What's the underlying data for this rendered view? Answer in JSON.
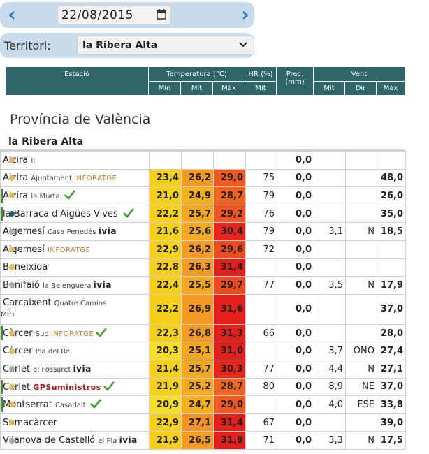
{
  "date_nav": {
    "date_value": "22/08/2015",
    "prev_icon": "chevron-left-icon",
    "next_icon": "chevron-right-icon"
  },
  "territory": {
    "label": "Territori:",
    "selected": "la Ribera Alta"
  },
  "header": {
    "station": "Estació",
    "temperature": "Temperatura (°C)",
    "humidity": "HR (%)",
    "precipitation": "Prec. (mm)",
    "wind": "Vent",
    "sub": {
      "temp_min": "Mín",
      "temp_mid": "Mit",
      "temp_max": "Màx",
      "hr_mid": "Mit",
      "wind_mid": "Mit",
      "wind_dir": "Dir",
      "wind_max": "Màx"
    }
  },
  "province": "Província de València",
  "territory_heading": "la Ribera Alta",
  "colors": {
    "dot_yellow": "#e6b85c",
    "dot_grey": "#aaaaaa",
    "dot_teal": "#1d6b63",
    "header_bg": "#2e6568"
  },
  "rows": [
    {
      "name": "Alzira",
      "sub": "II",
      "tag": "",
      "dot": "#e6b85c",
      "check": false,
      "min": "",
      "mit": "",
      "max": "",
      "hr": "",
      "prec": "0,0",
      "vmit": "",
      "vdir": "",
      "vmax": "",
      "cmin": "#ffffff",
      "cmit": "#ffffff",
      "cmax": "#ffffff"
    },
    {
      "name": "Alzira",
      "sub": "Ajuntament",
      "tag": "INFORATGE",
      "dot": "#e6b85c",
      "check": false,
      "min": "23,4",
      "mit": "26,2",
      "max": "29,0",
      "hr": "75",
      "prec": "0,0",
      "vmit": "",
      "vdir": "",
      "vmax": "48,0",
      "cmin": "#f6d11c",
      "cmit": "#f39b25",
      "cmax": "#ef5a21"
    },
    {
      "name": "Alzira",
      "sub": "la Murta",
      "tag": "",
      "dot": "#e6b85c",
      "check": true,
      "min": "21,0",
      "mit": "24,9",
      "max": "28,7",
      "hr": "79",
      "prec": "0,0",
      "vmit": "",
      "vdir": "",
      "vmax": "26,0",
      "cmin": "#f6d11c",
      "cmit": "#f5b020",
      "cmax": "#ef6522"
    },
    {
      "name": "la Barraca d'Aigües Vives",
      "sub": "",
      "tag": "",
      "dot": "#1d6b63",
      "check": true,
      "min": "22,2",
      "mit": "25,7",
      "max": "29,2",
      "hr": "76",
      "prec": "0,0",
      "vmit": "",
      "vdir": "",
      "vmax": "35,0",
      "cmin": "#f6d11c",
      "cmit": "#f4a823",
      "cmax": "#ee5520"
    },
    {
      "name": "Algemesí",
      "sub": "Casa Penedés",
      "tag": "ivia",
      "dot": "#aaaaaa",
      "check": false,
      "min": "21,6",
      "mit": "25,6",
      "max": "30,4",
      "hr": "79",
      "prec": "0,0",
      "vmit": "3,1",
      "vdir": "N",
      "vmax": "18,5",
      "cmin": "#f6d11c",
      "cmit": "#f4a823",
      "cmax": "#e8261e"
    },
    {
      "name": "Algemesí",
      "sub": "",
      "tag": "INFORATGE",
      "dot": "#e6b85c",
      "check": false,
      "min": "22,9",
      "mit": "26,2",
      "max": "29,6",
      "hr": "72",
      "prec": "0,0",
      "vmit": "",
      "vdir": "",
      "vmax": "",
      "cmin": "#f6d11c",
      "cmit": "#f39b25",
      "cmax": "#ec4a20"
    },
    {
      "name": "Beneixida",
      "sub": "",
      "tag": "",
      "dot": "#e6b85c",
      "check": false,
      "min": "22,8",
      "mit": "26,3",
      "max": "31,4",
      "hr": "",
      "prec": "0,0",
      "vmit": "",
      "vdir": "",
      "vmax": "",
      "cmin": "#f6d11c",
      "cmit": "#f39b25",
      "cmax": "#e4201c"
    },
    {
      "name": "Benifaió",
      "sub": "la Belenguera",
      "tag": "ivia",
      "dot": "#aaaaaa",
      "check": false,
      "min": "22,4",
      "mit": "25,5",
      "max": "29,7",
      "hr": "77",
      "prec": "0,0",
      "vmit": "3,5",
      "vdir": "N",
      "vmax": "17,9",
      "cmin": "#f6d11c",
      "cmit": "#f4a823",
      "cmax": "#ec4a20"
    },
    {
      "name": "Carcaixent",
      "sub": "Quatre Camins",
      "sub2": "AEMET",
      "tag": "",
      "dot": "#ffffff",
      "check": false,
      "min": "22,2",
      "mit": "26,9",
      "max": "31,6",
      "hr": "",
      "prec": "0,0",
      "vmit": "",
      "vdir": "",
      "vmax": "37,0",
      "cmin": "#f6d11c",
      "cmit": "#f39b25",
      "cmax": "#e4201c"
    },
    {
      "name": "Càrcer",
      "sub": "Sud",
      "tag": "INFORATGE",
      "dot": "#e6b85c",
      "check": true,
      "min": "22,3",
      "mit": "26,8",
      "max": "31,3",
      "hr": "66",
      "prec": "0,0",
      "vmit": "",
      "vdir": "",
      "vmax": "28,0",
      "cmin": "#f6d11c",
      "cmit": "#f39b25",
      "cmax": "#e4201c"
    },
    {
      "name": "Càrcer",
      "sub": "Pla del Rei",
      "tag": "",
      "dot": "#e6b85c",
      "check": false,
      "min": "20,3",
      "mit": "25,1",
      "max": "31,0",
      "hr": "",
      "prec": "0,0",
      "vmit": "3,7",
      "vdir": "ONO",
      "vmax": "27,4",
      "cmin": "#f8de2a",
      "cmit": "#f4a823",
      "cmax": "#e4201c"
    },
    {
      "name": "Carlet",
      "sub": "el Fossaret",
      "tag": "ivia",
      "dot": "#aaaaaa",
      "check": false,
      "min": "21,4",
      "mit": "25,7",
      "max": "30,3",
      "hr": "77",
      "prec": "0,0",
      "vmit": "4,4",
      "vdir": "N",
      "vmax": "27,1",
      "cmin": "#f6d11c",
      "cmit": "#f4a823",
      "cmax": "#e8261e"
    },
    {
      "name": "Carlet",
      "sub": "",
      "tag": "GPSuministros",
      "dot": "#e6b85c",
      "check": true,
      "min": "21,9",
      "mit": "25,2",
      "max": "28,7",
      "hr": "80",
      "prec": "0,0",
      "vmit": "8,9",
      "vdir": "NE",
      "vmax": "37,0",
      "cmin": "#f6d11c",
      "cmit": "#f4a823",
      "cmax": "#ef6522"
    },
    {
      "name": "Montserrat",
      "sub": "Casadalt",
      "tag": "",
      "dot": "#e6b85c",
      "check": true,
      "min": "20,9",
      "mit": "24,7",
      "max": "29,0",
      "hr": "",
      "prec": "0,0",
      "vmit": "4,0",
      "vdir": "ESE",
      "vmax": "33,8",
      "cmin": "#f8de2a",
      "cmit": "#f5b020",
      "cmax": "#ef5a21"
    },
    {
      "name": "Sumacàrcer",
      "sub": "",
      "tag": "",
      "dot": "#e6b85c",
      "check": false,
      "min": "22,9",
      "mit": "27,1",
      "max": "31,4",
      "hr": "67",
      "prec": "0,0",
      "vmit": "",
      "vdir": "",
      "vmax": "39,0",
      "cmin": "#f6d11c",
      "cmit": "#f39225",
      "cmax": "#e4201c"
    },
    {
      "name": "Vilanova de Castelló",
      "sub": "el Pla",
      "tag": "ivia",
      "dot": "#aaaaaa",
      "check": false,
      "min": "21,9",
      "mit": "26,5",
      "max": "31,9",
      "hr": "71",
      "prec": "0,0",
      "vmit": "3,3",
      "vdir": "N",
      "vmax": "17,5",
      "cmin": "#f6d11c",
      "cmit": "#f39b25",
      "cmax": "#e4201c"
    }
  ]
}
